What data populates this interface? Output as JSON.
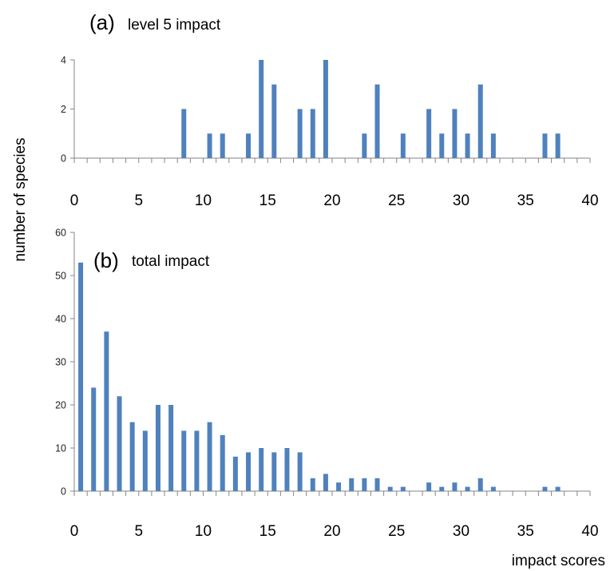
{
  "figure": {
    "ylabel": "number of species",
    "xlabel": "impact scores",
    "bar_color": "#4f81bd",
    "axis_color": "#868686"
  },
  "chart_data": [
    {
      "type": "bar",
      "panel_letter": "(a)",
      "panel_name": "level 5 impact",
      "xlim": [
        0,
        40
      ],
      "ylim": [
        0,
        4
      ],
      "x_ticks": [
        "0",
        "5",
        "10",
        "15",
        "20",
        "25",
        "30",
        "35",
        "40"
      ],
      "y_ticks": [
        "0",
        "2",
        "4"
      ],
      "grid": false,
      "bars": [
        {
          "x": 8,
          "y": 2
        },
        {
          "x": 10,
          "y": 1
        },
        {
          "x": 11,
          "y": 1
        },
        {
          "x": 13,
          "y": 1
        },
        {
          "x": 14,
          "y": 4
        },
        {
          "x": 15,
          "y": 3
        },
        {
          "x": 17,
          "y": 2
        },
        {
          "x": 18,
          "y": 2
        },
        {
          "x": 19,
          "y": 4
        },
        {
          "x": 22,
          "y": 1
        },
        {
          "x": 23,
          "y": 3
        },
        {
          "x": 25,
          "y": 1
        },
        {
          "x": 27,
          "y": 2
        },
        {
          "x": 28,
          "y": 1
        },
        {
          "x": 29,
          "y": 2
        },
        {
          "x": 30,
          "y": 1
        },
        {
          "x": 31,
          "y": 3
        },
        {
          "x": 32,
          "y": 1
        },
        {
          "x": 36,
          "y": 1
        },
        {
          "x": 37,
          "y": 1
        }
      ]
    },
    {
      "type": "bar",
      "panel_letter": "(b)",
      "panel_name": "total impact",
      "xlim": [
        0,
        40
      ],
      "ylim": [
        0,
        60
      ],
      "x_ticks": [
        "0",
        "5",
        "10",
        "15",
        "20",
        "25",
        "30",
        "35",
        "40"
      ],
      "y_ticks": [
        "0",
        "10",
        "20",
        "30",
        "40",
        "50",
        "60"
      ],
      "grid": false,
      "bars": [
        {
          "x": 0,
          "y": 53
        },
        {
          "x": 1,
          "y": 24
        },
        {
          "x": 2,
          "y": 37
        },
        {
          "x": 3,
          "y": 22
        },
        {
          "x": 4,
          "y": 16
        },
        {
          "x": 5,
          "y": 14
        },
        {
          "x": 6,
          "y": 20
        },
        {
          "x": 7,
          "y": 20
        },
        {
          "x": 8,
          "y": 14
        },
        {
          "x": 9,
          "y": 14
        },
        {
          "x": 10,
          "y": 16
        },
        {
          "x": 11,
          "y": 13
        },
        {
          "x": 12,
          "y": 8
        },
        {
          "x": 13,
          "y": 9
        },
        {
          "x": 14,
          "y": 10
        },
        {
          "x": 15,
          "y": 9
        },
        {
          "x": 16,
          "y": 10
        },
        {
          "x": 17,
          "y": 9
        },
        {
          "x": 18,
          "y": 3
        },
        {
          "x": 19,
          "y": 4
        },
        {
          "x": 20,
          "y": 2
        },
        {
          "x": 21,
          "y": 3
        },
        {
          "x": 22,
          "y": 3
        },
        {
          "x": 23,
          "y": 3
        },
        {
          "x": 24,
          "y": 1
        },
        {
          "x": 25,
          "y": 1
        },
        {
          "x": 27,
          "y": 2
        },
        {
          "x": 28,
          "y": 1
        },
        {
          "x": 29,
          "y": 2
        },
        {
          "x": 30,
          "y": 1
        },
        {
          "x": 31,
          "y": 3
        },
        {
          "x": 32,
          "y": 1
        },
        {
          "x": 36,
          "y": 1
        },
        {
          "x": 37,
          "y": 1
        }
      ]
    }
  ]
}
